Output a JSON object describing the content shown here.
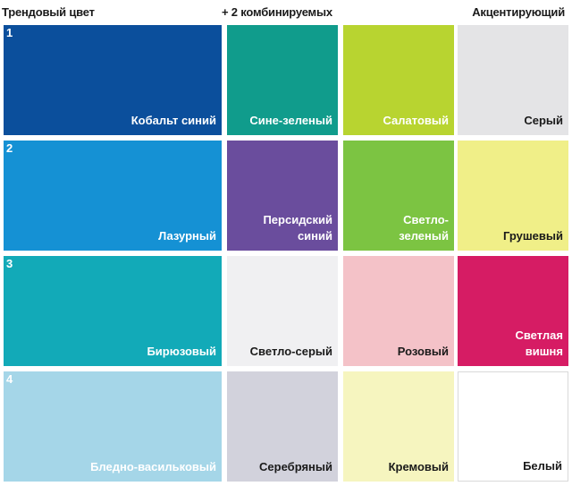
{
  "headers": {
    "trend": "Трендовый цвет",
    "combine": "+ 2 комбинируемых",
    "accent": "Акцентирующий"
  },
  "rows": [
    {
      "number": "1",
      "swatches": [
        {
          "label": "Кобальт синий",
          "color": "#0b4f9c",
          "text": "light"
        },
        {
          "label": "Сине-зеленый",
          "color": "#109c8c",
          "text": "light"
        },
        {
          "label": "Салатовый",
          "color": "#b8d430",
          "text": "light"
        },
        {
          "label": "Серый",
          "color": "#e4e4e6",
          "text": "dark"
        }
      ]
    },
    {
      "number": "2",
      "swatches": [
        {
          "label": "Лазурный",
          "color": "#1591d4",
          "text": "light"
        },
        {
          "label": "Персидский\nсиний",
          "color": "#6a4d9d",
          "text": "light"
        },
        {
          "label": "Светло-\nзеленый",
          "color": "#7cc442",
          "text": "light"
        },
        {
          "label": "Грушевый",
          "color": "#f0ef88",
          "text": "dark"
        }
      ]
    },
    {
      "number": "3",
      "swatches": [
        {
          "label": "Бирюзовый",
          "color": "#12aab8",
          "text": "light"
        },
        {
          "label": "Светло-серый",
          "color": "#f0f0f2",
          "text": "dark"
        },
        {
          "label": "Розовый",
          "color": "#f4c2c8",
          "text": "dark"
        },
        {
          "label": "Светлая\nвишня",
          "color": "#d61c64",
          "text": "light"
        }
      ]
    },
    {
      "number": "4",
      "swatches": [
        {
          "label": "Бледно-васильковый",
          "color": "#a5d6e8",
          "text": "light"
        },
        {
          "label": "Серебряный",
          "color": "#d2d2dc",
          "text": "dark"
        },
        {
          "label": "Кремовый",
          "color": "#f6f5bf",
          "text": "dark"
        },
        {
          "label": "Белый",
          "color": "#ffffff",
          "text": "dark",
          "outlined": true
        }
      ]
    }
  ]
}
